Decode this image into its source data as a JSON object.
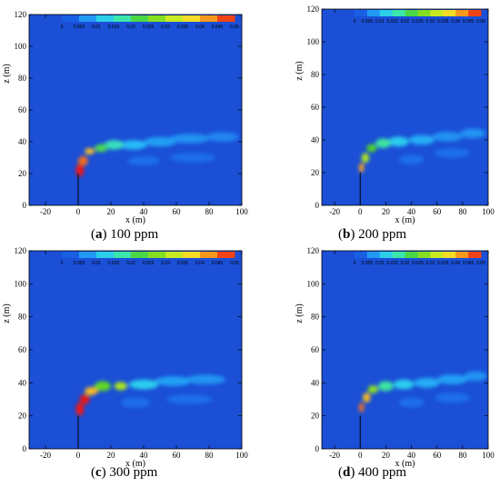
{
  "chart_data": [
    {
      "type": "heatmap",
      "caption_letter": "a",
      "caption_text": "100 ppm",
      "xlabel": "x (m)",
      "ylabel": "z (m)",
      "xlim": [
        -30,
        100
      ],
      "ylim": [
        0,
        120
      ],
      "xticks": [
        -20,
        0,
        20,
        40,
        60,
        80,
        100
      ],
      "yticks": [
        0,
        20,
        40,
        60,
        80,
        100,
        120
      ],
      "colorbar_ticks": [
        "0",
        "0.005",
        "0.01",
        "0.015",
        "0.02",
        "0.025",
        "0.03",
        "0.035",
        "0.04",
        "0.045",
        "0.05"
      ],
      "colorbar_range": [
        0,
        0.05
      ],
      "background_color": "#1a4fd6",
      "stack": {
        "x": 0,
        "z_bottom": 0,
        "z_top": 20
      },
      "plume": [
        {
          "x": 1,
          "z": 22,
          "rx": 2.5,
          "rz": 4,
          "v": 0.05
        },
        {
          "x": 3,
          "z": 28,
          "rx": 3,
          "rz": 3,
          "v": 0.045
        },
        {
          "x": 7,
          "z": 34,
          "rx": 3,
          "rz": 2,
          "v": 0.04
        },
        {
          "x": 14,
          "z": 36,
          "rx": 4,
          "rz": 2.5,
          "v": 0.022
        },
        {
          "x": 22,
          "z": 38,
          "rx": 6,
          "rz": 3,
          "v": 0.016
        },
        {
          "x": 34,
          "z": 38,
          "rx": 8,
          "rz": 3,
          "v": 0.01
        },
        {
          "x": 50,
          "z": 40,
          "rx": 10,
          "rz": 3,
          "v": 0.008
        },
        {
          "x": 68,
          "z": 42,
          "rx": 12,
          "rz": 3,
          "v": 0.007
        },
        {
          "x": 88,
          "z": 43,
          "rx": 10,
          "rz": 3,
          "v": 0.006
        },
        {
          "x": 40,
          "z": 28,
          "rx": 10,
          "rz": 3,
          "v": 0.004
        },
        {
          "x": 70,
          "z": 30,
          "rx": 14,
          "rz": 3,
          "v": 0.004
        }
      ]
    },
    {
      "type": "heatmap",
      "caption_letter": "b",
      "caption_text": "200 ppm",
      "xlabel": "x (m)",
      "ylabel": "z (m)",
      "xlim": [
        -30,
        100
      ],
      "ylim": [
        0,
        120
      ],
      "xticks": [
        -20,
        0,
        20,
        40,
        60,
        80,
        100
      ],
      "yticks": [
        0,
        20,
        40,
        60,
        80,
        100,
        120
      ],
      "colorbar_ticks": [
        "0",
        "0.005",
        "0.01",
        "0.015",
        "0.02",
        "0.025",
        "0.03",
        "0.035",
        "0.04",
        "0.045",
        "0.05"
      ],
      "colorbar_range": [
        0,
        0.05
      ],
      "background_color": "#1a4fd6",
      "stack": {
        "x": 0,
        "z_bottom": 0,
        "z_top": 20
      },
      "plume": [
        {
          "x": 1,
          "z": 23,
          "rx": 2,
          "rz": 3,
          "v": 0.042
        },
        {
          "x": 4,
          "z": 29,
          "rx": 3,
          "rz": 3,
          "v": 0.03
        },
        {
          "x": 9,
          "z": 35,
          "rx": 4,
          "rz": 2.5,
          "v": 0.024
        },
        {
          "x": 18,
          "z": 38,
          "rx": 6,
          "rz": 3,
          "v": 0.018
        },
        {
          "x": 30,
          "z": 39,
          "rx": 8,
          "rz": 3,
          "v": 0.012
        },
        {
          "x": 48,
          "z": 40,
          "rx": 10,
          "rz": 3,
          "v": 0.009
        },
        {
          "x": 68,
          "z": 42,
          "rx": 12,
          "rz": 3,
          "v": 0.007
        },
        {
          "x": 88,
          "z": 44,
          "rx": 10,
          "rz": 3,
          "v": 0.007
        },
        {
          "x": 40,
          "z": 28,
          "rx": 10,
          "rz": 3,
          "v": 0.004
        },
        {
          "x": 72,
          "z": 32,
          "rx": 14,
          "rz": 3,
          "v": 0.004
        }
      ]
    },
    {
      "type": "heatmap",
      "caption_letter": "c",
      "caption_text": "300 ppm",
      "xlabel": "x (m)",
      "ylabel": "z (m)",
      "xlim": [
        -30,
        100
      ],
      "ylim": [
        0,
        120
      ],
      "xticks": [
        -20,
        0,
        20,
        40,
        60,
        80,
        100
      ],
      "yticks": [
        0,
        20,
        40,
        60,
        80,
        100,
        120
      ],
      "colorbar_ticks": [
        "0",
        "0.005",
        "0.01",
        "0.015",
        "0.02",
        "0.025",
        "0.03",
        "0.035",
        "0.04",
        "0.045",
        "0.05"
      ],
      "colorbar_range": [
        0,
        0.05
      ],
      "background_color": "#1a4fd6",
      "stack": {
        "x": 0,
        "z_bottom": 0,
        "z_top": 20
      },
      "plume": [
        {
          "x": 1,
          "z": 24,
          "rx": 2.5,
          "rz": 4,
          "v": 0.05
        },
        {
          "x": 4,
          "z": 30,
          "rx": 3,
          "rz": 3,
          "v": 0.05
        },
        {
          "x": 8,
          "z": 35,
          "rx": 4,
          "rz": 2.5,
          "v": 0.04
        },
        {
          "x": 15,
          "z": 38,
          "rx": 5,
          "rz": 3,
          "v": 0.025
        },
        {
          "x": 26,
          "z": 38,
          "rx": 4,
          "rz": 2.5,
          "v": 0.03
        },
        {
          "x": 40,
          "z": 39,
          "rx": 9,
          "rz": 3,
          "v": 0.012
        },
        {
          "x": 58,
          "z": 41,
          "rx": 11,
          "rz": 3,
          "v": 0.008
        },
        {
          "x": 78,
          "z": 42,
          "rx": 12,
          "rz": 3,
          "v": 0.007
        },
        {
          "x": 35,
          "z": 28,
          "rx": 9,
          "rz": 3,
          "v": 0.004
        },
        {
          "x": 68,
          "z": 30,
          "rx": 14,
          "rz": 3,
          "v": 0.004
        }
      ]
    },
    {
      "type": "heatmap",
      "caption_letter": "d",
      "caption_text": "400 ppm",
      "xlabel": "x (m)",
      "ylabel": "z (m)",
      "xlim": [
        -30,
        100
      ],
      "ylim": [
        0,
        120
      ],
      "xticks": [
        -20,
        0,
        20,
        40,
        60,
        80,
        100
      ],
      "yticks": [
        0,
        20,
        40,
        60,
        80,
        100,
        120
      ],
      "colorbar_ticks": [
        "0",
        "0.005",
        "0.01",
        "0.015",
        "0.02",
        "0.025",
        "0.03",
        "0.035",
        "0.04",
        "0.045",
        "0.05"
      ],
      "colorbar_range": [
        0,
        0.05
      ],
      "background_color": "#1a4fd6",
      "stack": {
        "x": 0,
        "z_bottom": 0,
        "z_top": 20
      },
      "plume": [
        {
          "x": 1,
          "z": 25,
          "rx": 2,
          "rz": 3,
          "v": 0.045
        },
        {
          "x": 5,
          "z": 31,
          "rx": 3,
          "rz": 3,
          "v": 0.04
        },
        {
          "x": 10,
          "z": 36,
          "rx": 4,
          "rz": 2.5,
          "v": 0.028
        },
        {
          "x": 20,
          "z": 38,
          "rx": 6,
          "rz": 3,
          "v": 0.018
        },
        {
          "x": 34,
          "z": 39,
          "rx": 8,
          "rz": 3,
          "v": 0.012
        },
        {
          "x": 52,
          "z": 40,
          "rx": 10,
          "rz": 3,
          "v": 0.009
        },
        {
          "x": 72,
          "z": 42,
          "rx": 12,
          "rz": 3,
          "v": 0.008
        },
        {
          "x": 90,
          "z": 44,
          "rx": 9,
          "rz": 3,
          "v": 0.007
        },
        {
          "x": 40,
          "z": 28,
          "rx": 10,
          "rz": 3,
          "v": 0.004
        },
        {
          "x": 72,
          "z": 31,
          "rx": 14,
          "rz": 3,
          "v": 0.004
        }
      ]
    }
  ]
}
